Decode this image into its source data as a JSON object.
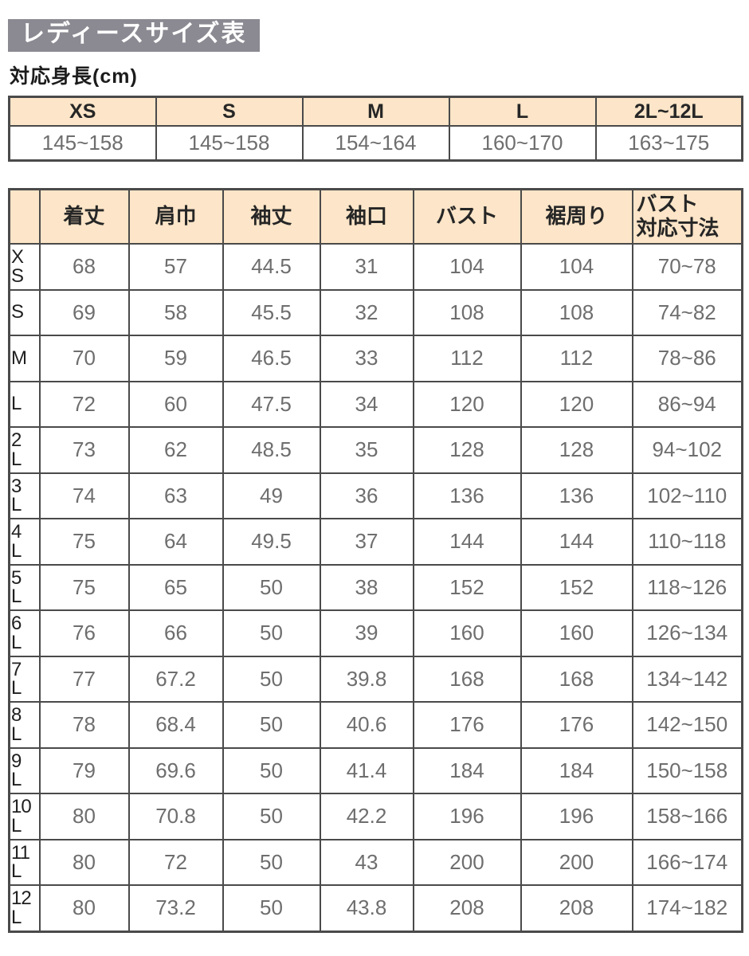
{
  "title": "レディースサイズ表",
  "subtitle": "対応身長(cm)",
  "colors": {
    "title_bg": "#8b8a92",
    "title_text": "#ffffff",
    "header_bg": "#fce5c8",
    "border": "#4a4a4a",
    "header_text": "#262626",
    "value_text": "#6e6e6e"
  },
  "chart_data": [
    {
      "type": "table",
      "title": "対応身長(cm)",
      "columns": [
        "XS",
        "S",
        "M",
        "L",
        "2L~12L"
      ],
      "rows": [
        [
          "145~158",
          "145~158",
          "154~164",
          "160~170",
          "163~175"
        ]
      ]
    },
    {
      "type": "table",
      "title": "レディースサイズ表",
      "columns": [
        "着丈",
        "肩巾",
        "袖丈",
        "袖口",
        "バスト",
        "裾周り",
        "バスト\n対応寸法"
      ],
      "row_labels": [
        "XS",
        "S",
        "M",
        "L",
        "2L",
        "3L",
        "4L",
        "5L",
        "6L",
        "7L",
        "8L",
        "9L",
        "10L",
        "11L",
        "12L"
      ],
      "rows": [
        [
          "68",
          "57",
          "44.5",
          "31",
          "104",
          "104",
          "70~78"
        ],
        [
          "69",
          "58",
          "45.5",
          "32",
          "108",
          "108",
          "74~82"
        ],
        [
          "70",
          "59",
          "46.5",
          "33",
          "112",
          "112",
          "78~86"
        ],
        [
          "72",
          "60",
          "47.5",
          "34",
          "120",
          "120",
          "86~94"
        ],
        [
          "73",
          "62",
          "48.5",
          "35",
          "128",
          "128",
          "94~102"
        ],
        [
          "74",
          "63",
          "49",
          "36",
          "136",
          "136",
          "102~110"
        ],
        [
          "75",
          "64",
          "49.5",
          "37",
          "144",
          "144",
          "110~118"
        ],
        [
          "75",
          "65",
          "50",
          "38",
          "152",
          "152",
          "118~126"
        ],
        [
          "76",
          "66",
          "50",
          "39",
          "160",
          "160",
          "126~134"
        ],
        [
          "77",
          "67.2",
          "50",
          "39.8",
          "168",
          "168",
          "134~142"
        ],
        [
          "78",
          "68.4",
          "50",
          "40.6",
          "176",
          "176",
          "142~150"
        ],
        [
          "79",
          "69.6",
          "50",
          "41.4",
          "184",
          "184",
          "150~158"
        ],
        [
          "80",
          "70.8",
          "50",
          "42.2",
          "196",
          "196",
          "158~166"
        ],
        [
          "80",
          "72",
          "50",
          "43",
          "200",
          "200",
          "166~174"
        ],
        [
          "80",
          "73.2",
          "50",
          "43.8",
          "208",
          "208",
          "174~182"
        ]
      ]
    }
  ]
}
